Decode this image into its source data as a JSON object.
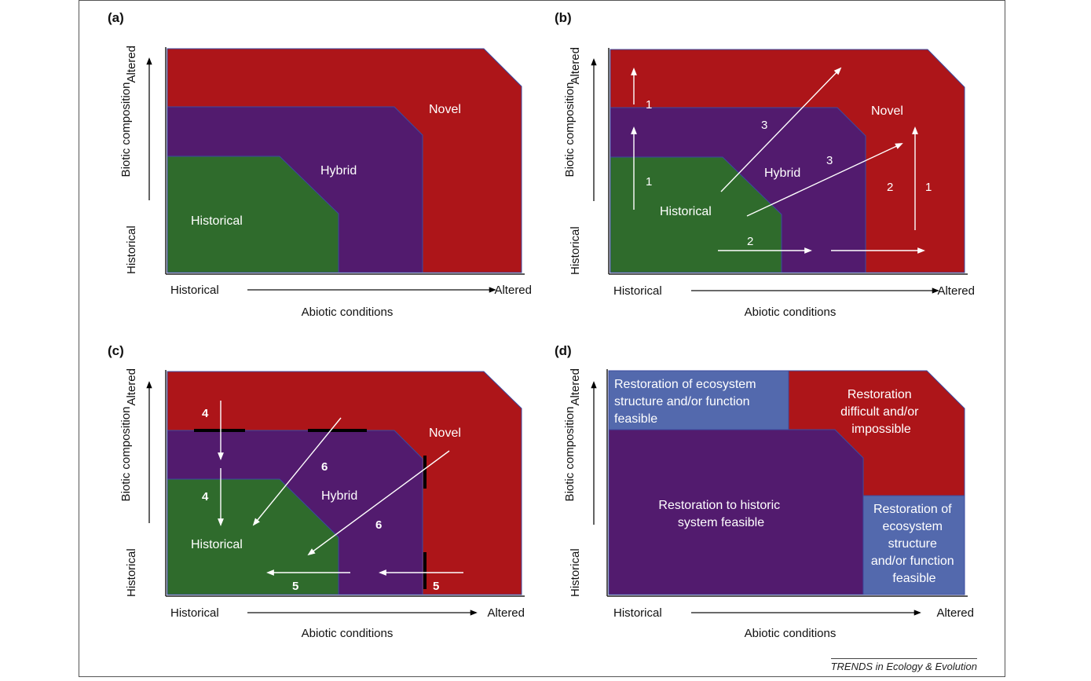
{
  "panels": [
    {
      "label": "(a)",
      "y_axis": {
        "label": "Biotic composition",
        "low": "Historical",
        "high": "Altered"
      },
      "x_axis": {
        "label": "Abiotic conditions",
        "low": "Historical",
        "high": "Altered"
      },
      "regions": {
        "novel": "Novel",
        "hybrid": "Hybrid",
        "historical": "Historical"
      }
    },
    {
      "label": "(b)",
      "y_axis": {
        "label": "Biotic composition",
        "low": "Historical",
        "high": "Altered"
      },
      "x_axis": {
        "label": "Abiotic conditions",
        "low": "Historical",
        "high": "Altered"
      },
      "regions": {
        "novel": "Novel",
        "hybrid": "Hybrid",
        "historical": "Historical"
      },
      "arrow_numbers": [
        "1",
        "1",
        "1",
        "2",
        "2",
        "3",
        "3"
      ]
    },
    {
      "label": "(c)",
      "y_axis": {
        "label": "Biotic composition",
        "low": "Historical",
        "high": "Altered"
      },
      "x_axis": {
        "label": "Abiotic conditions",
        "low": "Historical",
        "high": "Altered"
      },
      "regions": {
        "novel": "Novel",
        "hybrid": "Hybrid",
        "historical": "Historical"
      },
      "arrow_numbers": [
        "4",
        "4",
        "5",
        "5",
        "6",
        "6"
      ]
    },
    {
      "label": "(d)",
      "y_axis": {
        "label": "Biotic composition",
        "low": "Historical",
        "high": "Altered"
      },
      "x_axis": {
        "label": "Abiotic conditions",
        "low": "Historical",
        "high": "Altered"
      },
      "regions": {
        "top_left": [
          "Restoration of ecosystem",
          "structure and/or function",
          "feasible"
        ],
        "top_right": [
          "Restoration",
          "difficult and/or",
          "impossible"
        ],
        "center": [
          "Restoration to historic",
          "system feasible"
        ],
        "right": [
          "Restoration of",
          "ecosystem",
          "structure",
          "and/or function",
          "feasible"
        ]
      }
    }
  ],
  "credit": "TRENDS in Ecology & Evolution",
  "colors": {
    "novel": "#ad1519",
    "hybrid": "#521b6e",
    "historical": "#2f6b2c",
    "restore_box": "#5369ad",
    "arrow": "#ffffff",
    "barrier": "#000000",
    "outline": "#3b4aa0"
  }
}
